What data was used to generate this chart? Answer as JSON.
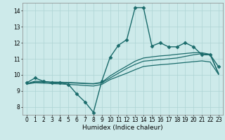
{
  "xlabel": "Humidex (Indice chaleur)",
  "ylabel": "",
  "background_color": "#cdeaea",
  "grid_color": "#add4d4",
  "line_color": "#1a6b6b",
  "xlim": [
    -0.5,
    23.5
  ],
  "ylim": [
    7.5,
    14.5
  ],
  "xticks": [
    0,
    1,
    2,
    3,
    4,
    5,
    6,
    7,
    8,
    9,
    10,
    11,
    12,
    13,
    14,
    15,
    16,
    17,
    18,
    19,
    20,
    21,
    22,
    23
  ],
  "yticks": [
    8,
    9,
    10,
    11,
    12,
    13,
    14
  ],
  "series": {
    "line1": {
      "x": [
        0,
        1,
        2,
        3,
        4,
        5,
        6,
        7,
        8,
        9,
        10,
        11,
        12,
        13,
        14,
        15,
        16,
        17,
        18,
        19,
        20,
        21,
        22,
        23
      ],
      "y": [
        9.5,
        9.8,
        9.6,
        9.5,
        9.5,
        9.4,
        8.8,
        8.3,
        7.65,
        9.6,
        11.1,
        11.85,
        12.2,
        14.2,
        14.2,
        11.8,
        12.0,
        11.75,
        11.75,
        12.0,
        11.75,
        11.25,
        11.25,
        10.5
      ],
      "marker": "D",
      "markersize": 2.5,
      "linewidth": 1.0
    },
    "line2": {
      "x": [
        0,
        1,
        2,
        3,
        4,
        5,
        6,
        7,
        8,
        9,
        10,
        11,
        12,
        13,
        14,
        15,
        16,
        17,
        18,
        19,
        20,
        21,
        22,
        23
      ],
      "y": [
        9.45,
        9.55,
        9.55,
        9.52,
        9.52,
        9.5,
        9.48,
        9.45,
        9.43,
        9.5,
        9.8,
        10.1,
        10.4,
        10.65,
        10.85,
        10.9,
        10.95,
        11.0,
        11.05,
        11.15,
        11.25,
        11.32,
        11.25,
        10.05
      ],
      "marker": null,
      "markersize": 0,
      "linewidth": 0.9
    },
    "line3": {
      "x": [
        0,
        1,
        2,
        3,
        4,
        5,
        6,
        7,
        8,
        9,
        10,
        11,
        12,
        13,
        14,
        15,
        16,
        17,
        18,
        19,
        20,
        21,
        22,
        23
      ],
      "y": [
        9.45,
        9.6,
        9.58,
        9.55,
        9.54,
        9.52,
        9.5,
        9.47,
        9.45,
        9.53,
        9.93,
        10.25,
        10.55,
        10.85,
        11.05,
        11.12,
        11.18,
        11.22,
        11.28,
        11.33,
        11.38,
        11.38,
        11.28,
        10.08
      ],
      "marker": null,
      "markersize": 0,
      "linewidth": 0.9
    },
    "line4": {
      "x": [
        0,
        1,
        2,
        3,
        4,
        5,
        6,
        7,
        8,
        9,
        10,
        11,
        12,
        13,
        14,
        15,
        16,
        17,
        18,
        19,
        20,
        21,
        22,
        23
      ],
      "y": [
        9.42,
        9.5,
        9.48,
        9.45,
        9.43,
        9.4,
        9.37,
        9.33,
        9.3,
        9.4,
        9.7,
        9.9,
        10.1,
        10.32,
        10.52,
        10.58,
        10.63,
        10.67,
        10.72,
        10.77,
        10.82,
        10.87,
        10.8,
        10.02
      ],
      "marker": null,
      "markersize": 0,
      "linewidth": 0.9
    }
  },
  "tick_fontsize": 5.5,
  "label_fontsize": 6.5
}
